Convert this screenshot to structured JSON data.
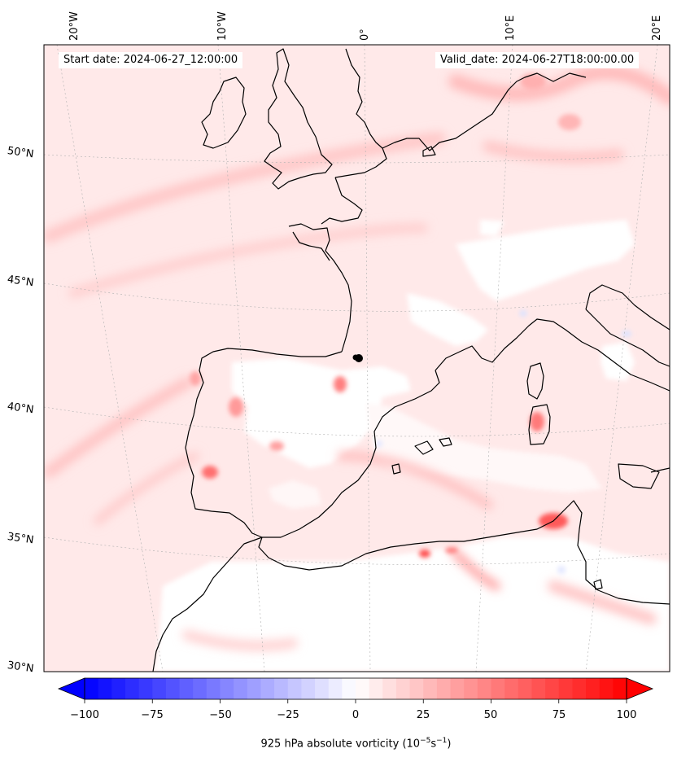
{
  "header": {
    "start_date": "Start date: 2024-06-27_12:00:00",
    "valid_date": "Valid_date: 2024-06-27T18:00:00.00"
  },
  "graticule": {
    "longitudes": [
      "20°W",
      "10°W",
      "0°",
      "10°E",
      "20°E"
    ],
    "latitudes": [
      "50°N",
      "45°N",
      "40°N",
      "35°N",
      "30°N"
    ]
  },
  "colorbar": {
    "ticks": [
      "−100",
      "−75",
      "−50",
      "−25",
      "0",
      "25",
      "50",
      "75",
      "100"
    ],
    "label_prefix": "925 hPa absolute vorticity (10",
    "label_exp1": "−5",
    "label_mid": "s",
    "label_exp2": "−1",
    "label_suffix": ")",
    "colors": {
      "negative": "#0000ff",
      "zero": "#ffffff",
      "positive": "#ff0000"
    }
  },
  "map": {
    "colors": {
      "coast": "#000000",
      "background": "#ffe9e9"
    }
  }
}
